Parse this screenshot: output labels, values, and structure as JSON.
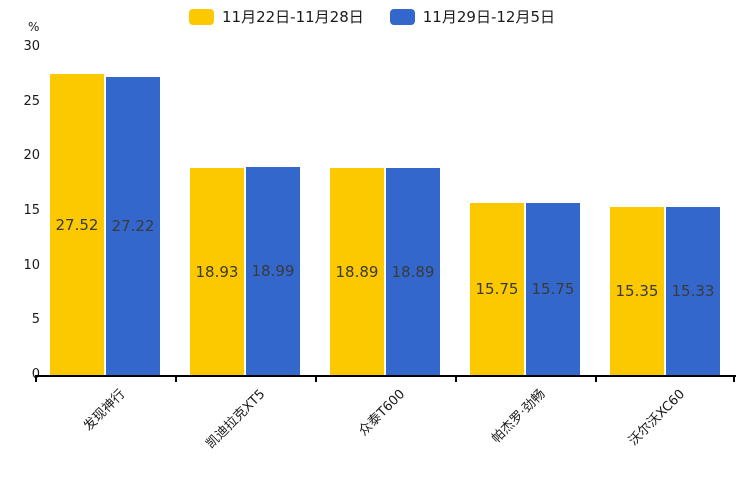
{
  "chart_data": {
    "type": "bar",
    "title": "",
    "y_unit": "%",
    "ylim": [
      0,
      30
    ],
    "yticks": [
      0,
      5,
      10,
      15,
      20,
      25,
      30
    ],
    "grid": false,
    "legend_position": "top",
    "value_labels": "inside-center",
    "axis_color": "#000000",
    "value_label_color": "#3a3a3a",
    "categories": [
      "发现神行",
      "凯迪拉克XT5",
      "众泰T600",
      "帕杰罗·劲畅",
      "沃尔沃XC60"
    ],
    "series": [
      {
        "name": "11月22日-11月28日",
        "color": "#fcc800",
        "values": [
          27.52,
          18.93,
          18.89,
          15.75,
          15.35
        ]
      },
      {
        "name": "11月29日-12月5日",
        "color": "#3467cb",
        "values": [
          27.22,
          18.99,
          18.89,
          15.75,
          15.33
        ]
      }
    ]
  }
}
